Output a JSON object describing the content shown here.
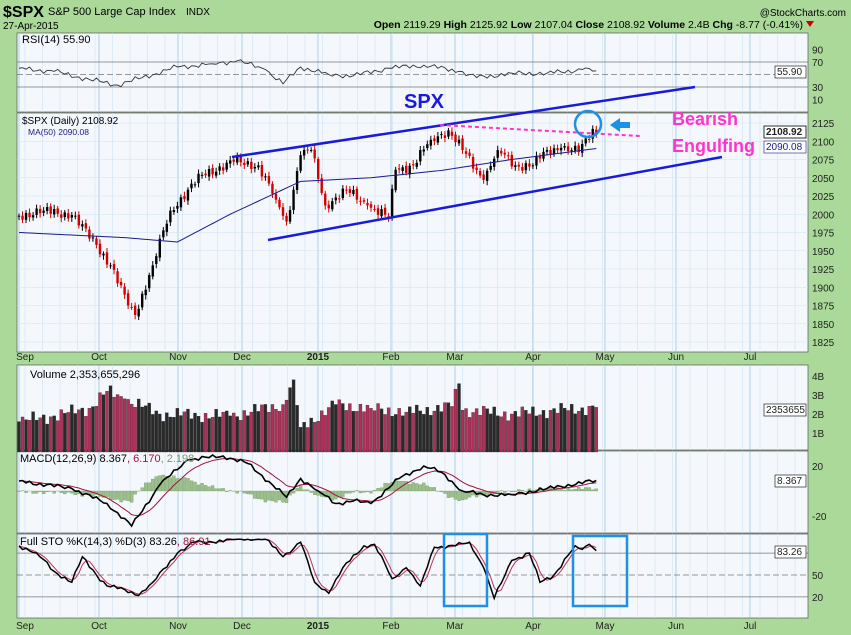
{
  "header": {
    "symbol": "$SPX",
    "name": "S&P 500 Large Cap Index",
    "exchange": "INDX",
    "date": "27-Apr-2015",
    "watermark": "@StockCharts.com",
    "open_label": "Open",
    "open": "2119.29",
    "high_label": "High",
    "high": "2125.92",
    "low_label": "Low",
    "low": "2107.04",
    "close_label": "Close",
    "close": "2108.92",
    "volume_label": "Volume",
    "volume": "2.4B",
    "chg_label": "Chg",
    "chg": "-8.77 (-0.41%)",
    "down_color": "#cc0000"
  },
  "annotations": {
    "spx_label": "SPX",
    "pattern_line1": "Bearish",
    "pattern_line2": "Engulfing",
    "line_color": "#1a1adb",
    "pink": "#ff33cc",
    "highlight": "#1e90e6"
  },
  "chart_data": [
    {
      "panel": "rsi",
      "type": "line",
      "legend": "RSI(14) 55.90",
      "last_value_tag": "55.90",
      "y_ticks": [
        "90",
        "70",
        "30",
        "10"
      ],
      "ylim": [
        0,
        100
      ],
      "anchors": [
        [
          0,
          60
        ],
        [
          10,
          55
        ],
        [
          20,
          42
        ],
        [
          28,
          33
        ],
        [
          35,
          45
        ],
        [
          45,
          62
        ],
        [
          55,
          67
        ],
        [
          62,
          72
        ],
        [
          70,
          58
        ],
        [
          75,
          35
        ],
        [
          80,
          62
        ],
        [
          88,
          50
        ],
        [
          95,
          48
        ],
        [
          105,
          60
        ],
        [
          115,
          65
        ],
        [
          125,
          55
        ],
        [
          130,
          45
        ],
        [
          140,
          52
        ],
        [
          150,
          52
        ],
        [
          160,
          58
        ],
        [
          164,
          55.9
        ]
      ]
    },
    {
      "panel": "price",
      "type": "ohlc",
      "legend_price": "$SPX (Daily) 2108.92",
      "legend_ma": "MA(50) 2090.08",
      "last_value_tag": "2108.92",
      "ma_value_tag": "2090.08",
      "y_ticks": [
        "2125",
        "2100",
        "2075",
        "2050",
        "2025",
        "2000",
        "1975",
        "1950",
        "1925",
        "1900",
        "1875",
        "1850",
        "1825"
      ],
      "ylim": [
        1815,
        2140
      ],
      "x_ticks": [
        "Sep",
        "Oct",
        "Nov",
        "Dec",
        "2015",
        "Feb",
        "Mar",
        "Apr",
        "May",
        "Jun",
        "Jul"
      ],
      "trading_days": 165,
      "close_anchors": [
        [
          0,
          1998
        ],
        [
          7,
          2005
        ],
        [
          15,
          1999
        ],
        [
          22,
          1958
        ],
        [
          26,
          1930
        ],
        [
          31,
          1875
        ],
        [
          33,
          1862
        ],
        [
          38,
          1930
        ],
        [
          43,
          2005
        ],
        [
          52,
          2054
        ],
        [
          61,
          2072
        ],
        [
          68,
          2067
        ],
        [
          73,
          2020
        ],
        [
          76,
          1990
        ],
        [
          80,
          2081
        ],
        [
          83,
          2088
        ],
        [
          87,
          2012
        ],
        [
          93,
          2033
        ],
        [
          99,
          2012
        ],
        [
          105,
          1995
        ],
        [
          107,
          2061
        ],
        [
          112,
          2067
        ],
        [
          117,
          2102
        ],
        [
          122,
          2115
        ],
        [
          126,
          2088
        ],
        [
          132,
          2047
        ],
        [
          136,
          2088
        ],
        [
          141,
          2067
        ],
        [
          146,
          2067
        ],
        [
          150,
          2088
        ],
        [
          154,
          2091
        ],
        [
          159,
          2085
        ],
        [
          163,
          2117
        ],
        [
          164,
          2108.92
        ]
      ],
      "ma50_anchors": [
        [
          0,
          1975
        ],
        [
          30,
          1968
        ],
        [
          45,
          1962
        ],
        [
          60,
          2000
        ],
        [
          80,
          2045
        ],
        [
          100,
          2050
        ],
        [
          120,
          2060
        ],
        [
          140,
          2075
        ],
        [
          164,
          2090.08
        ]
      ]
    },
    {
      "panel": "volume",
      "type": "bar",
      "legend": "Volume 2,353,655,296",
      "last_value_tag": "2353655",
      "y_ticks": [
        "4B",
        "3B",
        "2B",
        "1B"
      ],
      "anchors_billions": [
        [
          0,
          1.6
        ],
        [
          10,
          1.9
        ],
        [
          20,
          2.3
        ],
        [
          25,
          3.2
        ],
        [
          30,
          2.8
        ],
        [
          40,
          2.0
        ],
        [
          60,
          1.9
        ],
        [
          75,
          2.5
        ],
        [
          78,
          3.8
        ],
        [
          80,
          1.3
        ],
        [
          90,
          2.5
        ],
        [
          100,
          2.3
        ],
        [
          110,
          2.1
        ],
        [
          123,
          2.4
        ],
        [
          125,
          3.6
        ],
        [
          126,
          2.2
        ],
        [
          140,
          2.0
        ],
        [
          164,
          2.35
        ]
      ]
    },
    {
      "panel": "macd",
      "type": "line",
      "legend_main": "MACD(12,26,9) 8.367",
      "legend_signal": ", 6.170",
      "legend_hist": ", 2.198",
      "last_value_tag": "8.367",
      "y_ticks": [
        "20",
        "-20"
      ],
      "anchors": [
        [
          0,
          8
        ],
        [
          15,
          2
        ],
        [
          25,
          -10
        ],
        [
          32,
          -28
        ],
        [
          40,
          5
        ],
        [
          48,
          25
        ],
        [
          58,
          28
        ],
        [
          65,
          22
        ],
        [
          72,
          5
        ],
        [
          76,
          -5
        ],
        [
          80,
          10
        ],
        [
          85,
          0
        ],
        [
          90,
          -10
        ],
        [
          95,
          -8
        ],
        [
          100,
          -10
        ],
        [
          108,
          10
        ],
        [
          115,
          20
        ],
        [
          120,
          15
        ],
        [
          126,
          0
        ],
        [
          132,
          -3
        ],
        [
          140,
          -3
        ],
        [
          150,
          2
        ],
        [
          164,
          8.367
        ]
      ]
    },
    {
      "panel": "stochastic",
      "type": "line",
      "legend_main": "Full STO %K(14,3) %D(3) 83.26",
      "legend_d": ", 86.91",
      "last_value_tag": "83.26",
      "y_ticks": [
        "50",
        "20"
      ],
      "ylim": [
        0,
        100
      ],
      "anchors": [
        [
          0,
          90
        ],
        [
          5,
          80
        ],
        [
          10,
          55
        ],
        [
          15,
          40
        ],
        [
          18,
          75
        ],
        [
          22,
          50
        ],
        [
          25,
          35
        ],
        [
          30,
          30
        ],
        [
          34,
          22
        ],
        [
          38,
          40
        ],
        [
          45,
          80
        ],
        [
          50,
          95
        ],
        [
          55,
          95
        ],
        [
          62,
          100
        ],
        [
          70,
          100
        ],
        [
          75,
          75
        ],
        [
          80,
          95
        ],
        [
          84,
          40
        ],
        [
          88,
          25
        ],
        [
          92,
          60
        ],
        [
          98,
          90
        ],
        [
          101,
          92
        ],
        [
          106,
          45
        ],
        [
          110,
          60
        ],
        [
          114,
          35
        ],
        [
          118,
          88
        ],
        [
          124,
          90
        ],
        [
          128,
          95
        ],
        [
          132,
          60
        ],
        [
          135,
          18
        ],
        [
          140,
          70
        ],
        [
          145,
          80
        ],
        [
          148,
          40
        ],
        [
          152,
          50
        ],
        [
          158,
          90
        ],
        [
          160,
          85
        ],
        [
          162,
          92
        ],
        [
          164,
          83.26
        ]
      ]
    }
  ]
}
